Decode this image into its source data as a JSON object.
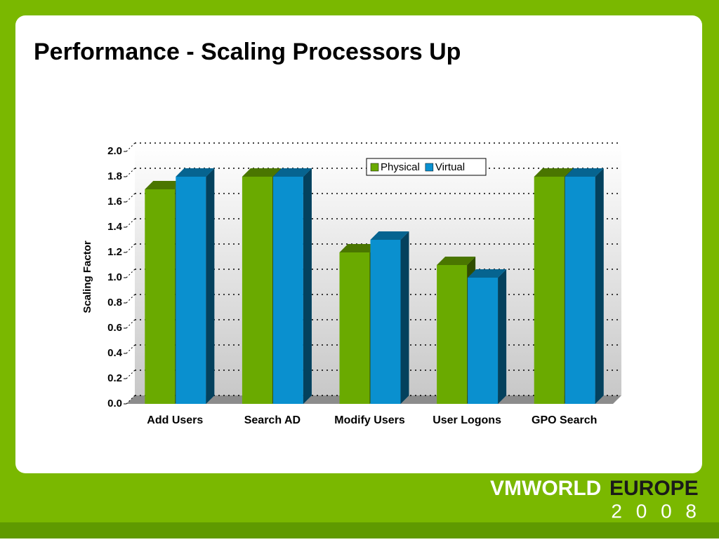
{
  "chart_data": {
    "type": "bar",
    "title": "Performance - Scaling Processors Up",
    "y_label": "Scaling Factor",
    "categories": [
      "Add Users",
      "Search AD",
      "Modify Users",
      "User Logons",
      "GPO Search"
    ],
    "series": [
      {
        "name": "Physical",
        "color": "#6aaa00",
        "values": [
          1.7,
          1.8,
          1.2,
          1.1,
          1.8
        ]
      },
      {
        "name": "Virtual",
        "color": "#0a90cf",
        "values": [
          1.8,
          1.8,
          1.3,
          1.0,
          1.8
        ]
      }
    ],
    "ylim": [
      0,
      2
    ],
    "yticks": [
      {
        "value": 0,
        "label": "0.0"
      },
      0.2,
      0.4,
      0.6,
      0.8,
      {
        "value": 1,
        "label": "1.0"
      },
      1.2,
      1.4,
      1.6,
      1.8,
      {
        "value": 2,
        "label": "2.0"
      }
    ],
    "grid": true,
    "legend": "top"
  },
  "branding": {
    "event": "VMWORLD",
    "region": "EUROPE",
    "year": "2 0 0 8"
  }
}
